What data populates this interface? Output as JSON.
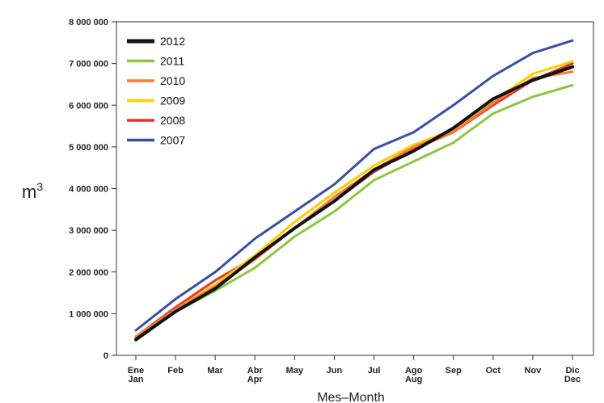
{
  "chart_data": {
    "type": "line",
    "title": "",
    "xlabel": "Mes–Month",
    "ylabel": "m",
    "ylabel_superscript": "3",
    "categories": [
      [
        "Ene",
        "Jan"
      ],
      [
        "Feb"
      ],
      [
        "Mar"
      ],
      [
        "Abr",
        "Apr"
      ],
      [
        "May"
      ],
      [
        "Jun"
      ],
      [
        "Jul"
      ],
      [
        "Ago",
        "Aug"
      ],
      [
        "Sep"
      ],
      [
        "Oct"
      ],
      [
        "Nov"
      ],
      [
        "Dic",
        "Dec"
      ]
    ],
    "ylim": [
      0,
      8000000
    ],
    "yticks": [
      0,
      1000000,
      2000000,
      3000000,
      4000000,
      5000000,
      6000000,
      7000000,
      8000000
    ],
    "ytick_labels": [
      "0",
      "1 000 000",
      "2 000 000",
      "3 000 000",
      "4 000 000",
      "5 000 000",
      "6 000 000",
      "7 000 000",
      "8 000 000"
    ],
    "grid": false,
    "legend_position": "top-left",
    "series": [
      {
        "name": "2007",
        "color": "#3a4ea3",
        "values": [
          600000,
          1350000,
          2000000,
          2800000,
          3450000,
          4100000,
          4950000,
          5350000,
          6000000,
          6700000,
          7250000,
          7550000
        ]
      },
      {
        "name": "2008",
        "color": "#e8352b",
        "values": [
          450000,
          1150000,
          1800000,
          2350000,
          3050000,
          3700000,
          4400000,
          4950000,
          5350000,
          6000000,
          6600000,
          7000000
        ]
      },
      {
        "name": "2009",
        "color": "#ffcc00",
        "values": [
          420000,
          1100000,
          1700000,
          2400000,
          3200000,
          3900000,
          4550000,
          5050000,
          5400000,
          6100000,
          6750000,
          7050000
        ]
      },
      {
        "name": "2010",
        "color": "#f37c3b",
        "values": [
          450000,
          1100000,
          1650000,
          2300000,
          3050000,
          3800000,
          4450000,
          5000000,
          5350000,
          6050000,
          6650000,
          6800000
        ]
      },
      {
        "name": "2011",
        "color": "#8cc63f",
        "values": [
          350000,
          1050000,
          1550000,
          2100000,
          2850000,
          3450000,
          4200000,
          4650000,
          5100000,
          5800000,
          6200000,
          6480000
        ]
      },
      {
        "name": "2012",
        "color": "#111111",
        "values": [
          380000,
          1050000,
          1600000,
          2350000,
          3050000,
          3700000,
          4450000,
          4900000,
          5450000,
          6150000,
          6600000,
          6920000
        ]
      }
    ],
    "legend_order": [
      "2012",
      "2011",
      "2010",
      "2009",
      "2008",
      "2007"
    ]
  }
}
